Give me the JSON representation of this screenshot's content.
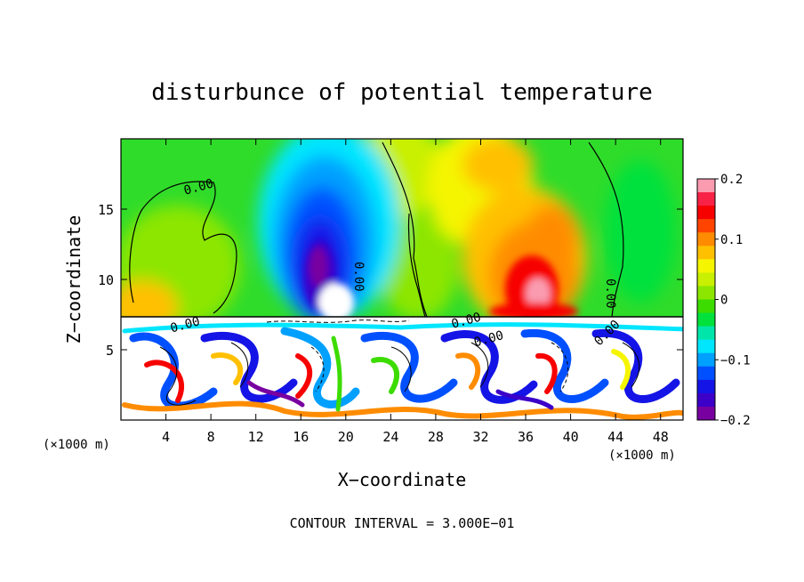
{
  "chart_data": {
    "type": "heatmap",
    "title": "disturbunce of potential temperature",
    "xlabel": "X−coordinate",
    "ylabel": "Z−coordinate",
    "x_unit_left": "(×1000 m)",
    "x_unit_right": "(×1000 m)",
    "xlim": [
      0,
      50
    ],
    "ylim": [
      0,
      20
    ],
    "xticks": [
      4,
      8,
      12,
      16,
      20,
      24,
      28,
      32,
      36,
      40,
      44,
      48
    ],
    "xtick_labels": [
      "4",
      "8",
      "12",
      "16",
      "20",
      "24",
      "28",
      "32",
      "36",
      "40",
      "44",
      "48"
    ],
    "yticks": [
      5,
      10,
      15
    ],
    "ytick_labels": [
      "5",
      "10",
      "15"
    ],
    "colorbar": {
      "range": [
        -0.2,
        0.2
      ],
      "ticks": [
        0.2,
        0.1,
        0,
        -0.1,
        -0.2
      ],
      "tick_labels": [
        "0.2",
        "0.1",
        "0",
        "−0.1",
        "−0.2"
      ],
      "colors": [
        "#fa9bb0",
        "#f72246",
        "#f70000",
        "#ff4400",
        "#ff8c00",
        "#ffc000",
        "#f5f500",
        "#c8f000",
        "#8ce600",
        "#3cdc00",
        "#00e13c",
        "#00e6aa",
        "#00e6ff",
        "#00a0ff",
        "#0050ff",
        "#1414e6",
        "#3c00c8",
        "#7800a0"
      ]
    },
    "contour_labels": [
      "0.00",
      "0.00",
      "0.00",
      "0.00",
      "0.00",
      "0.00",
      "0.00"
    ],
    "contour_label_positions": [
      [
        7.0,
        16.3
      ],
      [
        20.8,
        10.2
      ],
      [
        43.2,
        9.0
      ],
      [
        5.8,
        6.5
      ],
      [
        30.8,
        6.8
      ],
      [
        32.8,
        5.5
      ],
      [
        43.5,
        6.0
      ]
    ],
    "upper_field": [
      {
        "x": 4,
        "z": 10,
        "value": 0.06
      },
      {
        "x": 18.5,
        "z": 11,
        "value": -0.2
      },
      {
        "x": 25,
        "z": 15,
        "value": 0.0
      },
      {
        "x": 36,
        "z": 10,
        "value": 0.16
      },
      {
        "x": 36,
        "z": 16,
        "value": 0.08
      },
      {
        "x": 44,
        "z": 16,
        "value": 0.02
      }
    ],
    "footer": "CONTOUR INTERVAL = 3.000E−01"
  }
}
